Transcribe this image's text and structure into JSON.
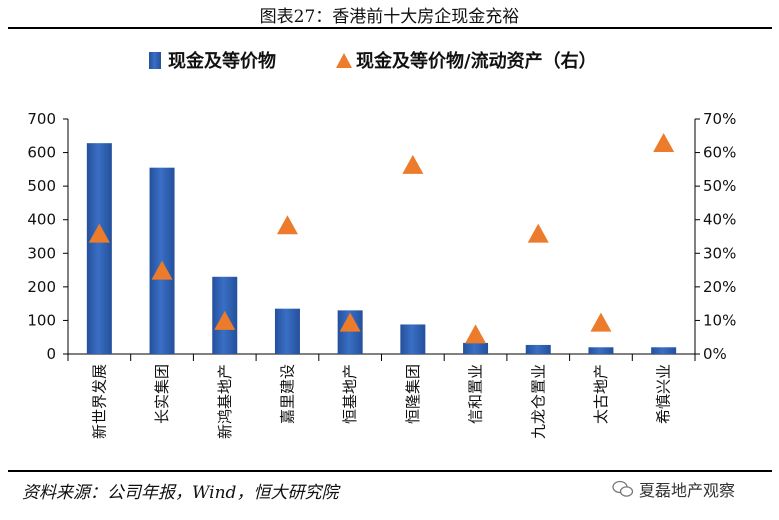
{
  "title": "图表27：香港前十大房企现金充裕",
  "source": "资料来源：公司年报，Wind，恒大研究院",
  "watermark": "夏磊地产观察",
  "colors": {
    "bar": "#3a6fc4",
    "bar_dark": "#24509c",
    "marker": "#ec7b2b"
  },
  "chart_data": {
    "type": "bar",
    "categories": [
      "新世界发展",
      "长实集团",
      "新鸿基地产",
      "嘉里建设",
      "恒基地产",
      "恒隆集团",
      "信和置业",
      "九龙仓置业",
      "太古地产",
      "希慎兴业"
    ],
    "series": [
      {
        "name": "现金及等价物",
        "type": "bar",
        "axis": "left",
        "values": [
          628,
          555,
          230,
          135,
          130,
          88,
          33,
          27,
          20,
          20
        ]
      },
      {
        "name": "现金及等价物/流动资产（右）",
        "type": "scatter",
        "marker": "triangle",
        "axis": "right",
        "values": [
          0.36,
          0.25,
          0.1,
          0.385,
          0.095,
          0.565,
          0.06,
          0.36,
          0.095,
          0.63
        ]
      }
    ],
    "y_left": {
      "lim": [
        0,
        700
      ],
      "ticks": [
        "0",
        "100",
        "200",
        "300",
        "400",
        "500",
        "600",
        "700"
      ]
    },
    "y_right": {
      "lim": [
        0,
        0.7
      ],
      "ticks": [
        "0%",
        "10%",
        "20%",
        "30%",
        "40%",
        "50%",
        "60%",
        "70%"
      ]
    },
    "legend": {
      "position": "top"
    },
    "grid": false
  }
}
